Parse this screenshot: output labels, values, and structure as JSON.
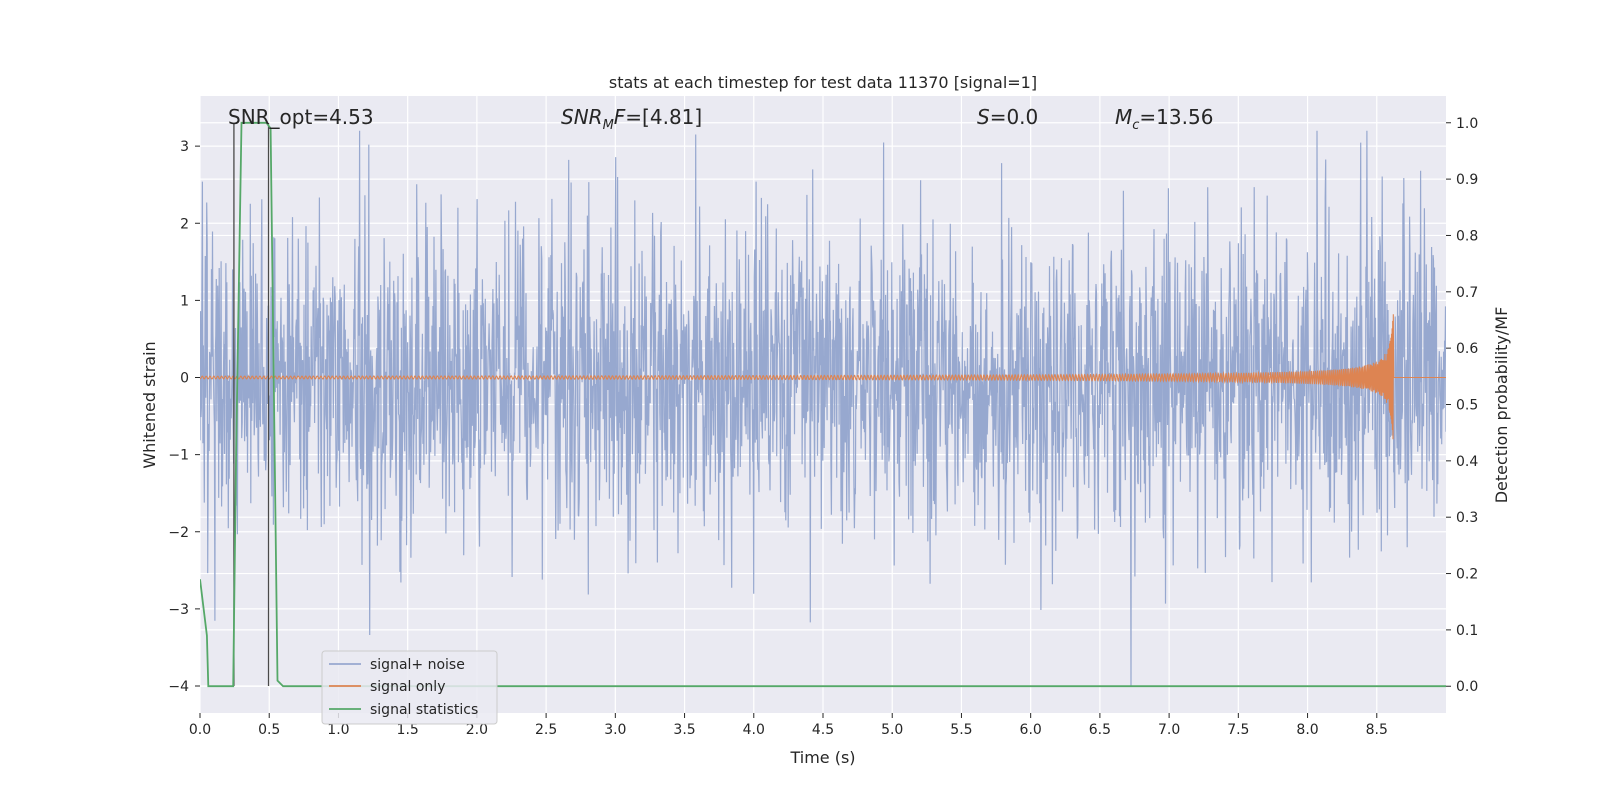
{
  "chart_data": {
    "type": "line",
    "title": "stats at each timestep for test data 11370 [signal=1]",
    "xlabel": "Time (s)",
    "ylabel": "Whitened strain",
    "ylabel_right": "Detection probability/MF",
    "xlim": [
      0.0,
      9.0
    ],
    "ylim": [
      -4.35,
      3.65
    ],
    "ylim_right": [
      -0.0475,
      1.0475
    ],
    "x_ticks": [
      "0.0",
      "0.5",
      "1.0",
      "1.5",
      "2.0",
      "2.5",
      "3.0",
      "3.5",
      "4.0",
      "4.5",
      "5.0",
      "5.5",
      "6.0",
      "6.5",
      "7.0",
      "7.5",
      "8.0",
      "8.5"
    ],
    "y_ticks": [
      "3",
      "2",
      "1",
      "0",
      "−1",
      "−2",
      "−3",
      "−4"
    ],
    "y_tick_values": [
      3,
      2,
      1,
      0,
      -1,
      -2,
      -3,
      -4
    ],
    "y_right_ticks": [
      "1.0",
      "0.9",
      "0.8",
      "0.7",
      "0.6",
      "0.5",
      "0.4",
      "0.3",
      "0.2",
      "0.1",
      "0.0"
    ],
    "y_right_tick_values": [
      1.0,
      0.9,
      0.8,
      0.7,
      0.6,
      0.5,
      0.4,
      0.3,
      0.2,
      0.1,
      0.0
    ],
    "grid": true,
    "legend_position": "lower-left",
    "annotations": [
      {
        "id": "snr-opt",
        "text": "SNR_opt=4.53",
        "x": 0.19,
        "y": 3.25
      },
      {
        "id": "snr-mf",
        "text": "=[4.81]",
        "prefix": "SNR",
        "sub": "M",
        "suffix": "F",
        "x": 2.6,
        "y": 3.25
      },
      {
        "id": "s-stat",
        "text": "=0.0",
        "prefix": "S",
        "x": 5.6,
        "y": 3.25
      },
      {
        "id": "mc",
        "text": "=13.56",
        "prefix": "M",
        "sub": "c",
        "x": 6.6,
        "y": 3.25
      }
    ],
    "series": [
      {
        "name": "signal+ noise",
        "color": "#97a8cf",
        "kind": "noise",
        "x_range": [
          0.0,
          9.0
        ],
        "typical_amplitude": 1.8,
        "max": 3.2,
        "min": -4.0
      },
      {
        "name": "signal only",
        "color": "#dd8452",
        "kind": "chirp",
        "x_range": [
          0.0,
          8.62
        ],
        "peak_time": 8.62,
        "peak_amplitude": 0.9
      },
      {
        "name": "signal statistics",
        "color": "#55a868",
        "axis": "right",
        "x": [
          0.0,
          0.05,
          0.06,
          0.1,
          0.24,
          0.26,
          0.3,
          0.48,
          0.51,
          0.56,
          0.6,
          9.0
        ],
        "values": [
          0.19,
          0.09,
          0.0,
          0.0,
          0.0,
          0.4,
          1.0,
          1.0,
          0.99,
          0.01,
          0.0,
          0.0
        ]
      },
      {
        "name": "window markers",
        "color": "#4a4a4a",
        "kind": "vlines",
        "x": [
          0.245,
          0.495
        ],
        "y_range": [
          -4.0,
          3.3
        ]
      }
    ],
    "legend": [
      {
        "label": "signal+ noise",
        "color": "#97a8cf"
      },
      {
        "label": "signal only",
        "color": "#dd8452"
      },
      {
        "label": "signal statistics",
        "color": "#55a868"
      }
    ]
  }
}
